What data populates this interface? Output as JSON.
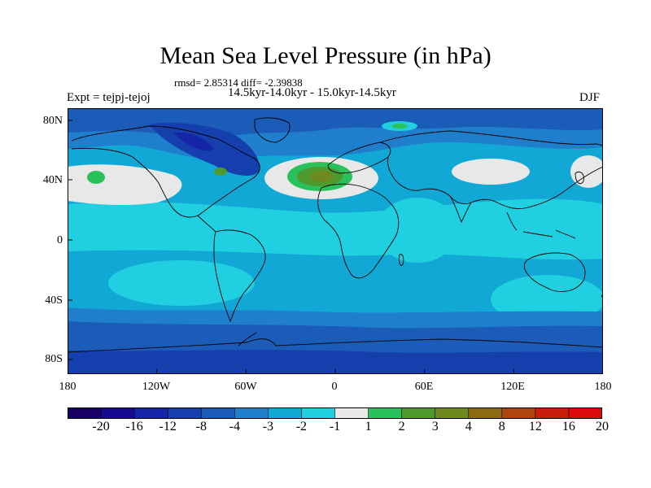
{
  "title": "Mean Sea Level Pressure (in hPa)",
  "stats": "rmsd= 2.85314 diff= -2.39838",
  "period": "14.5kyr-14.0kyr - 15.0kyr-14.5kyr",
  "experiment": "Expt = tejpj-tejoj",
  "season": "DJF",
  "lat_labels": [
    "80N",
    "40N",
    "0",
    "40S",
    "80S"
  ],
  "lon_labels": [
    "180",
    "120W",
    "60W",
    "0",
    "60E",
    "120E",
    "180"
  ],
  "colorbar": {
    "labels": [
      "-20",
      "-16",
      "-12",
      "-8",
      "-4",
      "-3",
      "-2",
      "-1",
      "1",
      "2",
      "3",
      "4",
      "8",
      "12",
      "16",
      "20"
    ],
    "colors": [
      "#1a0066",
      "#170a90",
      "#1525a8",
      "#163fae",
      "#1a5cb8",
      "#1f7fcc",
      "#11a8d6",
      "#20d0e0",
      "#e8e8e8",
      "#2bc15a",
      "#4f9a2f",
      "#6e8a1e",
      "#8c6a14",
      "#b04410",
      "#c81e0c",
      "#dc0a0a"
    ]
  },
  "colors": {
    "ocean_base": "#11a8d6",
    "coast_line": "#000000"
  }
}
